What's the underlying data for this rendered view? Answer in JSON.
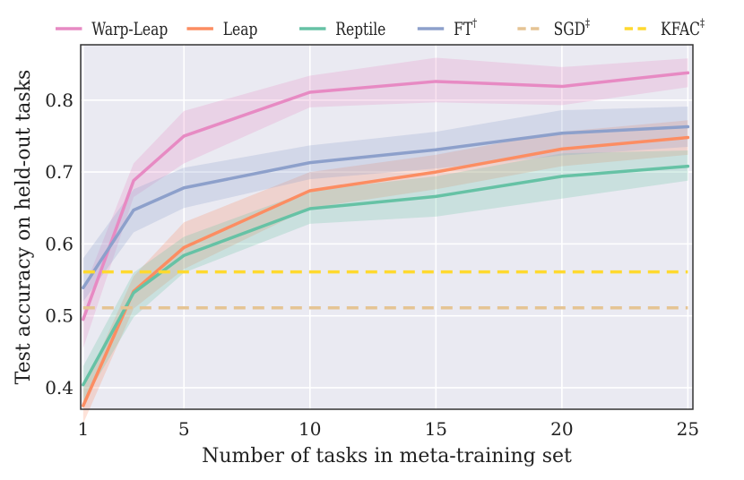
{
  "chart_data": {
    "type": "line",
    "title": "",
    "xlabel": "Number of tasks in meta-training set",
    "ylabel": "Test accuracy on held-out tasks",
    "x": [
      1,
      3,
      5,
      10,
      15,
      20,
      25
    ],
    "xticks": [
      1,
      5,
      10,
      15,
      20,
      25
    ],
    "xtick_labels": [
      "1",
      "5",
      "10",
      "15",
      "20",
      "25"
    ],
    "yticks": [
      0.4,
      0.5,
      0.6,
      0.7,
      0.8
    ],
    "ytick_labels": [
      "0.4",
      "0.5",
      "0.6",
      "0.7",
      "0.8"
    ],
    "xlim": [
      0.9,
      25.2
    ],
    "ylim": [
      0.37,
      0.877
    ],
    "grid": true,
    "legend_position": "top",
    "series": [
      {
        "name": "Warp-Leap",
        "sup": "",
        "color": "#e78ac3",
        "style": "solid",
        "values": [
          0.495,
          0.688,
          0.75,
          0.811,
          0.826,
          0.819,
          0.838
        ],
        "lower": [
          0.455,
          0.665,
          0.712,
          0.79,
          0.797,
          0.793,
          0.818
        ],
        "upper": [
          0.535,
          0.712,
          0.785,
          0.834,
          0.859,
          0.846,
          0.858
        ]
      },
      {
        "name": "Leap",
        "sup": "",
        "color": "#fc8d62",
        "style": "solid",
        "values": [
          0.375,
          0.534,
          0.595,
          0.674,
          0.7,
          0.732,
          0.748
        ],
        "lower": [
          0.35,
          0.51,
          0.565,
          0.65,
          0.676,
          0.708,
          0.724
        ],
        "upper": [
          0.398,
          0.555,
          0.63,
          0.7,
          0.724,
          0.756,
          0.772
        ]
      },
      {
        "name": "Reptile",
        "sup": "",
        "color": "#66c2a5",
        "style": "solid",
        "values": [
          0.404,
          0.532,
          0.584,
          0.649,
          0.666,
          0.694,
          0.708
        ],
        "lower": [
          0.38,
          0.498,
          0.56,
          0.628,
          0.638,
          0.663,
          0.688
        ],
        "upper": [
          0.43,
          0.56,
          0.61,
          0.674,
          0.694,
          0.726,
          0.73
        ]
      },
      {
        "name": "FT",
        "sup": "†",
        "color": "#8da0cb",
        "style": "solid",
        "values": [
          0.539,
          0.647,
          0.678,
          0.713,
          0.731,
          0.754,
          0.763
        ],
        "lower": [
          0.52,
          0.616,
          0.65,
          0.69,
          0.705,
          0.723,
          0.735
        ],
        "upper": [
          0.58,
          0.676,
          0.706,
          0.737,
          0.756,
          0.786,
          0.791
        ]
      },
      {
        "name": "SGD",
        "sup": "‡",
        "color": "#e5c494",
        "style": "dashed",
        "values": [
          0.511,
          0.511,
          0.511,
          0.511,
          0.511,
          0.511,
          0.511
        ]
      },
      {
        "name": "KFAC",
        "sup": "‡",
        "color": "#ffd92f",
        "style": "dashed",
        "values": [
          0.561,
          0.561,
          0.561,
          0.561,
          0.561,
          0.561,
          0.561
        ]
      }
    ]
  }
}
